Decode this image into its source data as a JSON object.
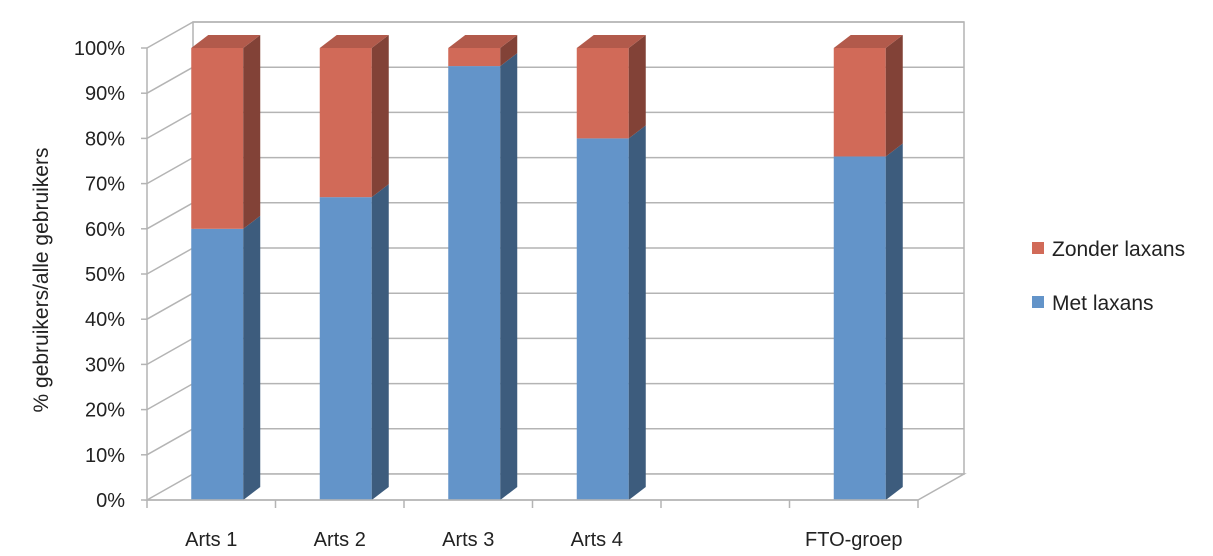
{
  "chart_data": {
    "type": "bar",
    "stacked": true,
    "three_d": true,
    "categories": [
      "Arts 1",
      "Arts 2",
      "Arts 3",
      "Arts 4",
      "",
      "FTO-groep"
    ],
    "series": [
      {
        "name": "Met laxans",
        "values": [
          60,
          67,
          96,
          80,
          null,
          76
        ],
        "color": "#6394c9"
      },
      {
        "name": "Zonder laxans",
        "values": [
          40,
          33,
          4,
          20,
          null,
          24
        ],
        "color": "#d16a58"
      }
    ],
    "xlabel": "",
    "ylabel": "% gebruikers/alle gebruikers",
    "ylim": [
      0,
      100
    ],
    "yticks": [
      "0%",
      "10%",
      "20%",
      "30%",
      "40%",
      "50%",
      "60%",
      "70%",
      "80%",
      "90%",
      "100%"
    ],
    "grid": true,
    "legend": {
      "position": "right",
      "order": [
        "Zonder laxans",
        "Met laxans"
      ]
    }
  }
}
